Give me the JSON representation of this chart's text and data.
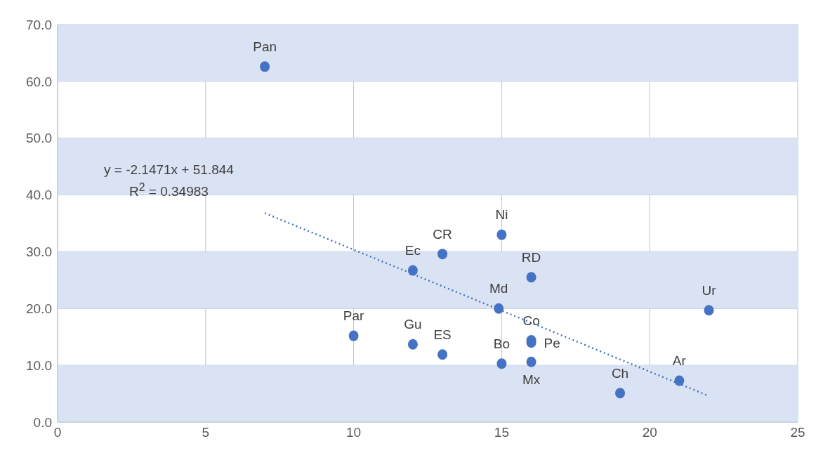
{
  "chart_data": {
    "type": "scatter",
    "xlim": [
      0,
      25
    ],
    "xticks": [
      0,
      5,
      10,
      15,
      20,
      25
    ],
    "ylim": [
      0,
      70
    ],
    "yticks": [
      {
        "value": 0,
        "label": "0.0"
      },
      {
        "value": 10,
        "label": "10.0"
      },
      {
        "value": 20,
        "label": "20.0"
      },
      {
        "value": 30,
        "label": "30.0"
      },
      {
        "value": 40,
        "label": "40.0"
      },
      {
        "value": 50,
        "label": "50.0"
      },
      {
        "value": 60,
        "label": "60.0"
      },
      {
        "value": 70,
        "label": "70.0"
      }
    ],
    "grid": true,
    "legend": false,
    "marker": "circle",
    "bands": [
      {
        "axis": "y",
        "from": 0,
        "to": 10,
        "color": "#dae3f3"
      },
      {
        "axis": "y",
        "from": 20,
        "to": 30,
        "color": "#dae3f3"
      },
      {
        "axis": "y",
        "from": 40,
        "to": 50,
        "color": "#dae3f3"
      },
      {
        "axis": "y",
        "from": 60,
        "to": 70,
        "color": "#dae3f3"
      }
    ],
    "series": [
      {
        "color": "#4472c4",
        "x": [
          7,
          10,
          12,
          12,
          13,
          13,
          15,
          14.9,
          15,
          16,
          16,
          16,
          16,
          19,
          21,
          22
        ],
        "values": [
          62.6,
          15.2,
          13.7,
          26.7,
          29.6,
          11.9,
          33.0,
          20.0,
          10.3,
          25.5,
          14.4,
          14.0,
          10.6,
          5.1,
          7.3,
          19.7
        ]
      },
      {
        "type": "line",
        "color": "#4472c4",
        "line_style": "dotted",
        "marker": "none",
        "x": [
          7,
          22
        ],
        "values": [
          36.8,
          4.6
        ]
      }
    ],
    "annotations": [
      {
        "text": "Pan",
        "x": 7,
        "y": 62.6
      },
      {
        "text": "Par",
        "x": 10,
        "y": 15.2
      },
      {
        "text": "Gu",
        "x": 12,
        "y": 13.7
      },
      {
        "text": "Ec",
        "x": 12,
        "y": 26.7
      },
      {
        "text": "CR",
        "x": 13,
        "y": 29.6
      },
      {
        "text": "ES",
        "x": 13,
        "y": 11.9
      },
      {
        "text": "Ni",
        "x": 15,
        "y": 33.0
      },
      {
        "text": "Md",
        "x": 14.9,
        "y": 20.0
      },
      {
        "text": "Bo",
        "x": 15,
        "y": 10.3
      },
      {
        "text": "RD",
        "x": 16,
        "y": 25.5
      },
      {
        "text": "Co",
        "x": 16,
        "y": 14.4
      },
      {
        "text": "Pe",
        "x": 16,
        "y": 14.0
      },
      {
        "text": "Mx",
        "x": 16,
        "y": 10.6
      },
      {
        "text": "Ch",
        "x": 19,
        "y": 5.1
      },
      {
        "text": "Ar",
        "x": 21,
        "y": 7.3
      },
      {
        "text": "Ur",
        "x": 22,
        "y": 19.7
      },
      "y = -2.1471x + 51.844",
      "R$^{2}$ = 0.34983"
    ]
  }
}
